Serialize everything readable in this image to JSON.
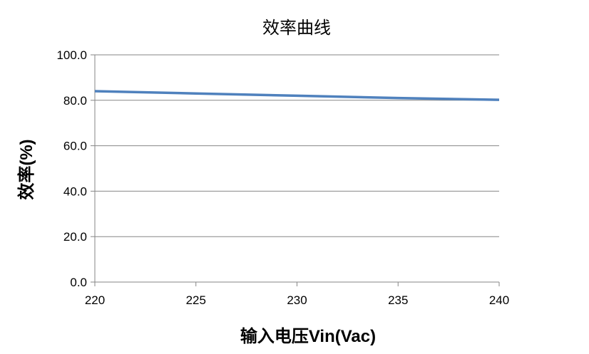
{
  "chart_data": {
    "type": "line",
    "title": "效率曲线",
    "xlabel": "输入电压Vin(Vac)",
    "ylabel": "效率(%)",
    "x": [
      220,
      225,
      230,
      235,
      240
    ],
    "series": [
      {
        "values": [
          84,
          83,
          82,
          81,
          80.2
        ],
        "color": "#4F81BD"
      }
    ],
    "xlim": [
      220,
      240
    ],
    "ylim": [
      0,
      100
    ],
    "xticks": [
      "220",
      "225",
      "230",
      "235",
      "240"
    ],
    "yticks": [
      "0.0",
      "20.0",
      "40.0",
      "60.0",
      "80.0",
      "100.0"
    ],
    "grid": "horizontal",
    "legend": "none"
  }
}
